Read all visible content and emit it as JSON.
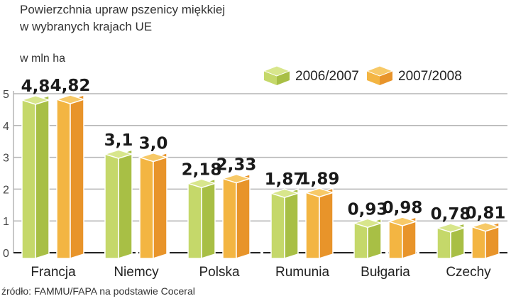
{
  "chart_data": {
    "type": "bar",
    "title": "Powierzchnia upraw pszenicy miękkiej w wybranych krajach UE",
    "title_lines": [
      "Powierzchnia upraw pszenicy miękkiej",
      "w wybranych krajach UE"
    ],
    "ylabel": "w mln ha",
    "xlabel": "",
    "ylim": [
      0,
      5
    ],
    "yticks": [
      "0",
      "1",
      "2",
      "3",
      "4",
      "5"
    ],
    "grid": true,
    "legend_position": "top-right",
    "categories": [
      "Francja",
      "Niemcy",
      "Polska",
      "Rumunia",
      "Bułgaria",
      "Czechy"
    ],
    "series": [
      {
        "name": "2006/2007",
        "values": [
          4.8,
          3.1,
          2.18,
          1.87,
          0.93,
          0.78
        ],
        "labels": [
          "4,8",
          "3,1",
          "2,18",
          "1,87",
          "0,93",
          "0,78"
        ],
        "color": "#c5d86a",
        "side": "#a8bf45",
        "top": "#d8e68c"
      },
      {
        "name": "2007/2008",
        "values": [
          4.82,
          3.0,
          2.33,
          1.89,
          0.98,
          0.81
        ],
        "labels": [
          "4,82",
          "3,0",
          "2,33",
          "1,89",
          "0,98",
          "0,81"
        ],
        "color": "#f3b542",
        "side": "#e8942a",
        "top": "#f7c967"
      }
    ],
    "source": "źródło: FAMMU/FAPA na podstawie Coceral"
  }
}
